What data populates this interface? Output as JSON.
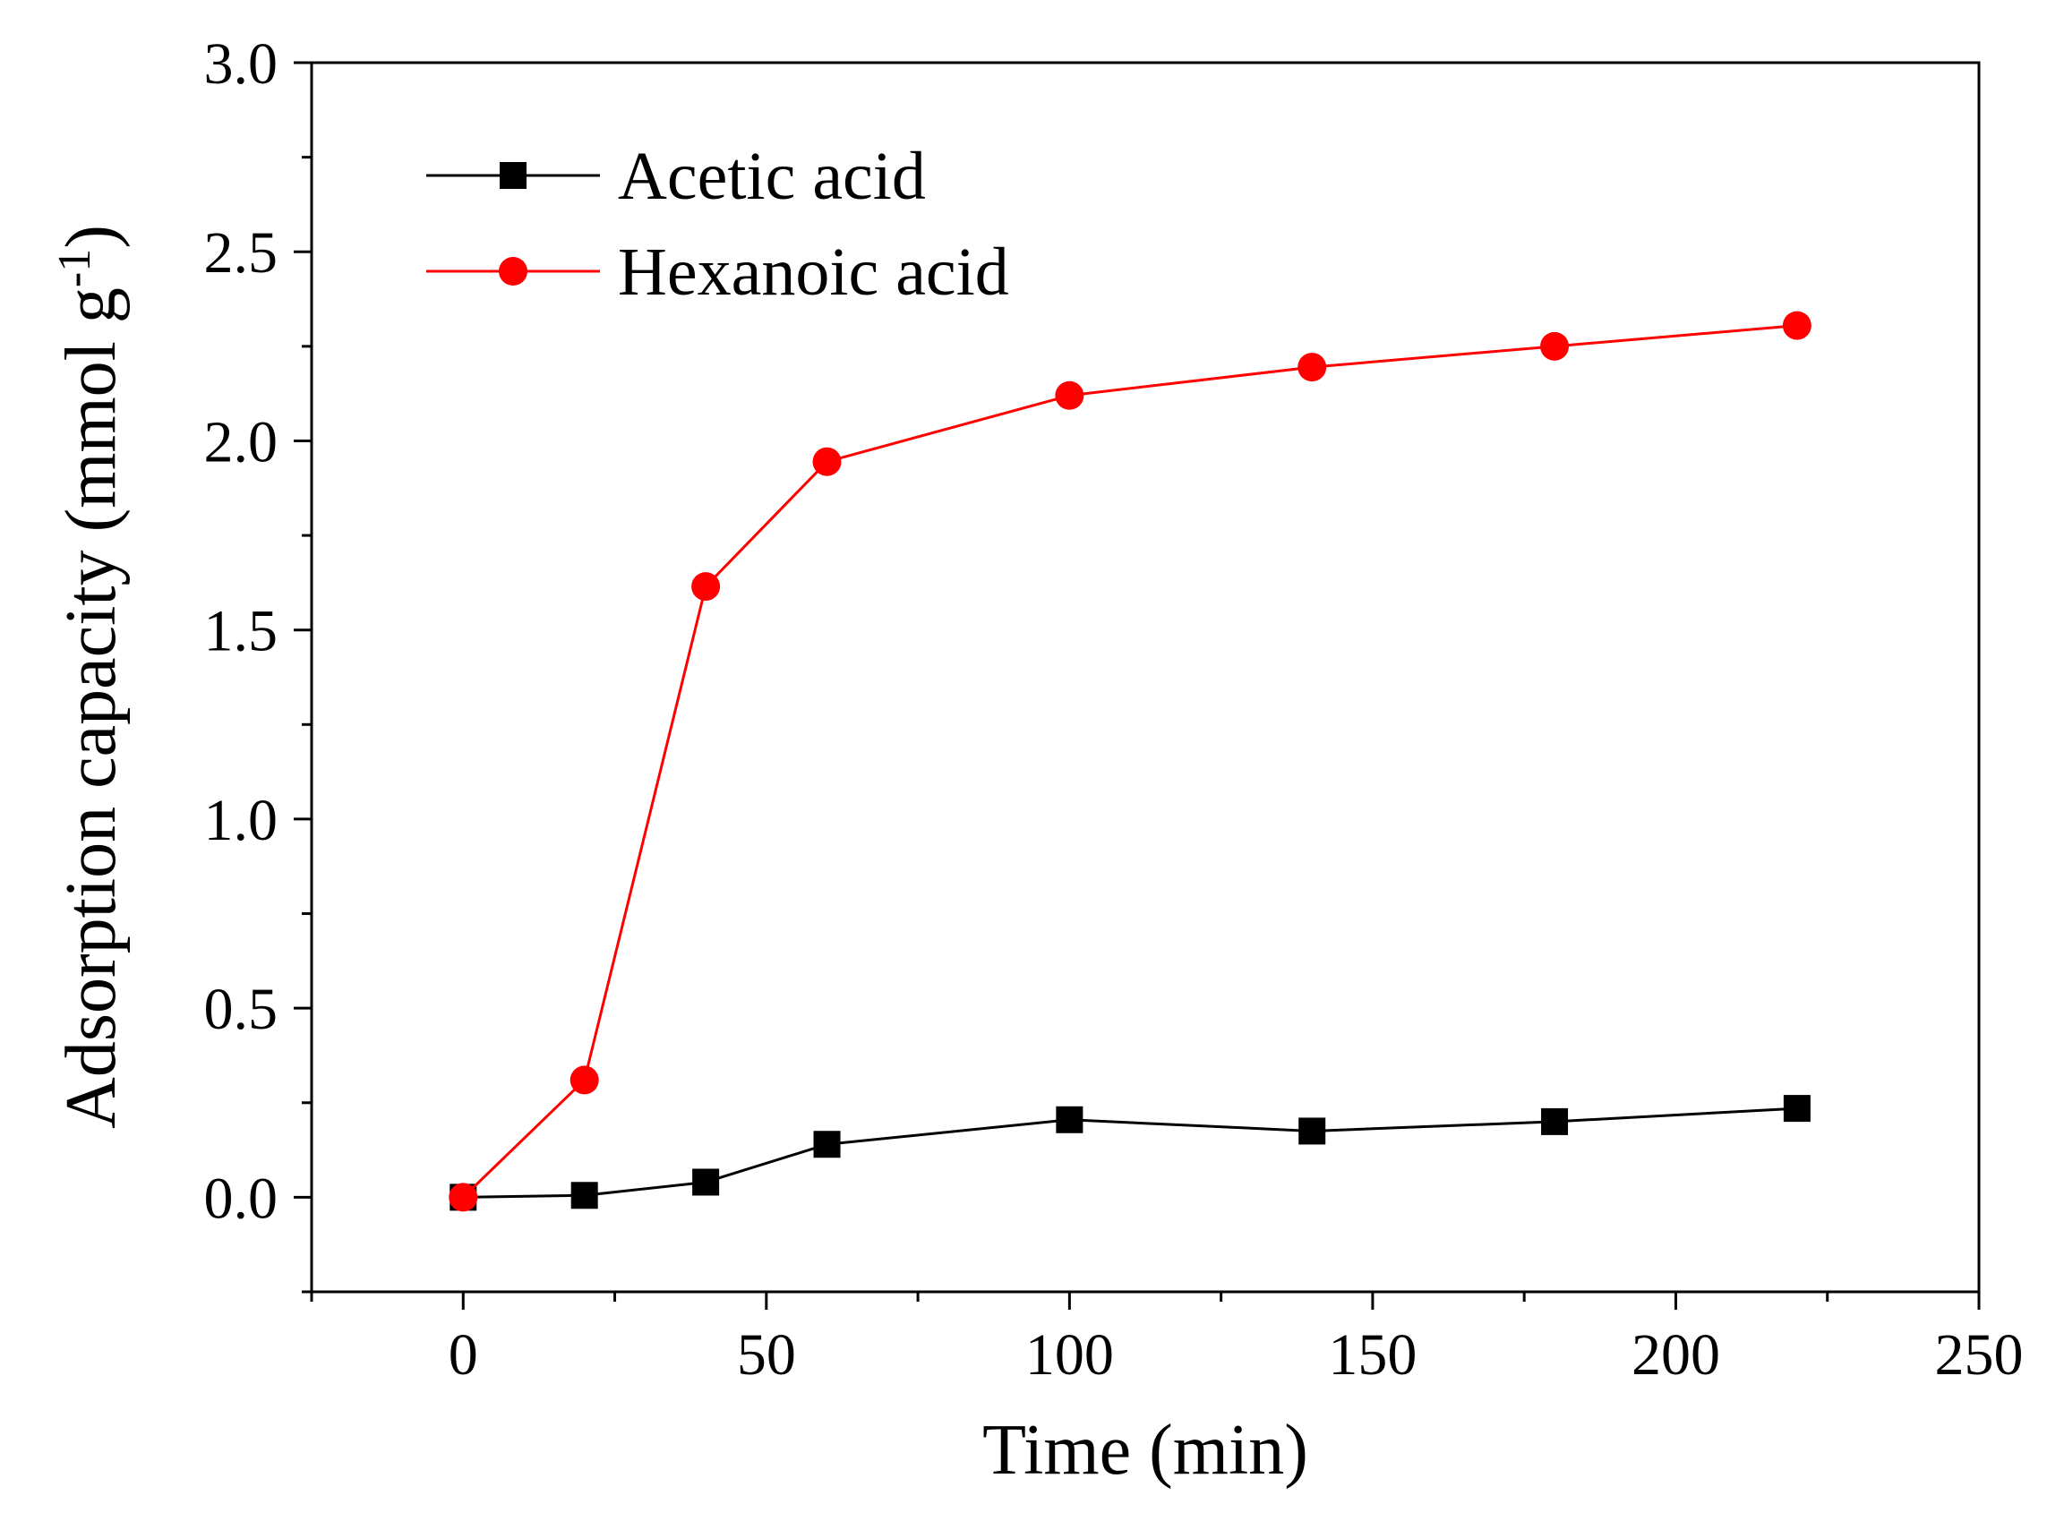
{
  "chart_data": {
    "type": "line",
    "title": "",
    "xlabel": "Time (min)",
    "ylabel_main": "Adsorption capacity (mmol g",
    "ylabel_sup": "-1",
    "ylabel_close": ")",
    "xlim": [
      -25,
      250
    ],
    "ylim": [
      -0.25,
      3.0
    ],
    "xticks": [
      0,
      50,
      100,
      150,
      200,
      250
    ],
    "xtick_labels": [
      "0",
      "50",
      "100",
      "150",
      "200",
      "250"
    ],
    "yticks": [
      0.0,
      0.5,
      1.0,
      1.5,
      2.0,
      2.5,
      3.0
    ],
    "ytick_labels": [
      "0.0",
      "0.5",
      "1.0",
      "1.5",
      "2.0",
      "2.5",
      "3.0"
    ],
    "x_minor_step": 25,
    "y_minor_step": 0.25,
    "legend_position": "top-left",
    "grid": false,
    "series": [
      {
        "name": "Acetic acid",
        "color": "#000000",
        "marker": "square",
        "x": [
          0,
          20,
          40,
          60,
          100,
          140,
          180,
          220
        ],
        "y": [
          0.0,
          0.005,
          0.04,
          0.14,
          0.205,
          0.175,
          0.2,
          0.235
        ]
      },
      {
        "name": "Hexanoic acid",
        "color": "#ff0000",
        "marker": "circle",
        "x": [
          0,
          20,
          40,
          60,
          100,
          140,
          180,
          220
        ],
        "y": [
          0.0,
          0.31,
          1.615,
          1.945,
          2.12,
          2.195,
          2.25,
          2.305
        ]
      }
    ]
  }
}
